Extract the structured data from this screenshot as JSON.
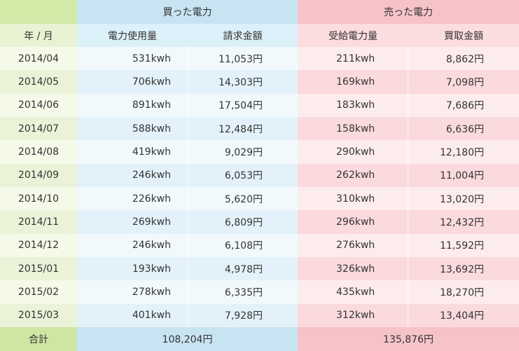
{
  "table": {
    "group_headers": {
      "date": "",
      "bought": "買った電力",
      "sold": "売った電力"
    },
    "columns": [
      "年 / 月",
      "電力使用量",
      "請求金額",
      "受給電力量",
      "買取金額"
    ],
    "rows": [
      [
        "2014/04",
        "531kwh",
        "11,053円",
        "211kwh",
        "8,862円"
      ],
      [
        "2014/05",
        "706kwh",
        "14,303円",
        "169kwh",
        "7,098円"
      ],
      [
        "2014/06",
        "891kwh",
        "17,504円",
        "183kwh",
        "7,686円"
      ],
      [
        "2014/07",
        "588kwh",
        "12,484円",
        "158kwh",
        "6,636円"
      ],
      [
        "2014/08",
        "419kwh",
        "9,029円",
        "290kwh",
        "12,180円"
      ],
      [
        "2014/09",
        "246kwh",
        "6,053円",
        "262kwh",
        "11,004円"
      ],
      [
        "2014/10",
        "226kwh",
        "5,620円",
        "310kwh",
        "13,020円"
      ],
      [
        "2014/11",
        "269kwh",
        "6,809円",
        "296kwh",
        "12,432円"
      ],
      [
        "2014/12",
        "246kwh",
        "6,108円",
        "276kwh",
        "11,592円"
      ],
      [
        "2015/01",
        "193kwh",
        "4,978円",
        "326kwh",
        "13,692円"
      ],
      [
        "2015/02",
        "278kwh",
        "6,335円",
        "435kwh",
        "18,270円"
      ],
      [
        "2015/03",
        "401kwh",
        "7,928円",
        "312kwh",
        "13,404円"
      ]
    ],
    "footer": {
      "label": "合計",
      "bought_total": "108,204円",
      "sold_total": "135,876円"
    }
  }
}
